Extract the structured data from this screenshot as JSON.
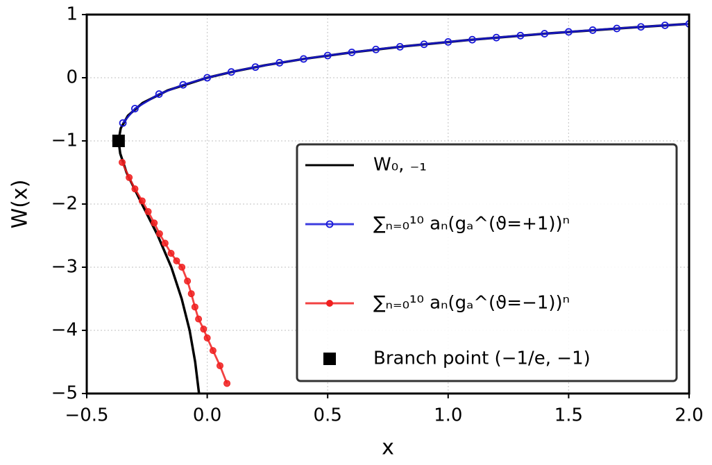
{
  "chart_data": {
    "type": "line",
    "xlabel": "x",
    "ylabel": "W(x)",
    "xlim": [
      -0.5,
      2.0
    ],
    "ylim": [
      -5,
      1
    ],
    "xticks": [
      {
        "value": -0.5,
        "label": "−0.5"
      },
      {
        "value": 0,
        "label": "0.0"
      },
      {
        "value": 0.5,
        "label": "0.5"
      },
      {
        "value": 1,
        "label": "1.0"
      },
      {
        "value": 1.5,
        "label": "1.5"
      },
      {
        "value": 2,
        "label": "2.0"
      }
    ],
    "yticks": [
      1,
      0,
      {
        "value": -1,
        "label": "−1"
      },
      {
        "value": -2,
        "label": "−2"
      },
      {
        "value": -3,
        "label": "−3"
      },
      {
        "value": -4,
        "label": "−4"
      },
      {
        "value": -5,
        "label": "−5"
      }
    ],
    "grid": true,
    "legend": "lower right",
    "series": [
      {
        "name": "W₀, ₋₁",
        "color": "#000000",
        "marker": "none",
        "linestyle": "solid",
        "x": [
          1.989,
          1.78,
          1.41,
          1.093,
          0.824,
          0.597,
          0.405,
          0.244,
          0.111,
          0,
          -0.164,
          -0.268,
          -0.329,
          -0.359,
          -0.368,
          -0.361,
          -0.335,
          -0.271,
          -0.205,
          -0.149,
          -0.106,
          -0.073,
          -0.05,
          -0.034
        ],
        "values": [
          0.85,
          0.8,
          0.7,
          0.6,
          0.5,
          0.4,
          0.3,
          0.2,
          0.1,
          0,
          -0.2,
          -0.4,
          -0.6,
          -0.8,
          -1,
          -1.2,
          -1.5,
          -2,
          -2.5,
          -3,
          -3.5,
          -4,
          -4.5,
          -5
        ]
      },
      {
        "name": "∑ₙ₌₀¹⁰ aₙ(gₐ^(ϑ=+1))ⁿ",
        "color": "#1a1ad9",
        "marker": "open-circle",
        "linestyle": "solid",
        "x": [
          -0.35,
          -0.3,
          -0.2,
          -0.1,
          0,
          0.1,
          0.2,
          0.3,
          0.4,
          0.5,
          0.6,
          0.7,
          0.8,
          0.9,
          1.0,
          1.1,
          1.2,
          1.3,
          1.4,
          1.5,
          1.6,
          1.7,
          1.8,
          1.9,
          2.0
        ],
        "values": [
          -0.717,
          -0.489,
          -0.259,
          -0.112,
          0,
          0.0913,
          0.1689,
          0.2368,
          0.2972,
          0.3517,
          0.4015,
          0.4475,
          0.49,
          0.5298,
          0.5671,
          0.6022,
          0.6355,
          0.667,
          0.697,
          0.7259,
          0.7534,
          0.7798,
          0.8052,
          0.8298,
          0.8526
        ]
      },
      {
        "name": "∑ₙ₌₀¹⁰ aₙ(gₐ^(ϑ=−1))ⁿ",
        "color": "#f02020",
        "marker": "circle",
        "linestyle": "solid",
        "x": [
          -0.353,
          -0.324,
          -0.3,
          -0.27,
          -0.245,
          -0.22,
          -0.198,
          -0.175,
          -0.15,
          -0.127,
          -0.105,
          -0.082,
          -0.066,
          -0.051,
          -0.036,
          -0.015,
          0.0,
          0.024,
          0.053,
          0.082
        ],
        "values": [
          -1.34,
          -1.58,
          -1.76,
          -1.95,
          -2.12,
          -2.3,
          -2.47,
          -2.62,
          -2.78,
          -2.9,
          -3.0,
          -3.22,
          -3.42,
          -3.63,
          -3.82,
          -3.98,
          -4.12,
          -4.32,
          -4.56,
          -4.84
        ]
      },
      {
        "name": "Branch point (−1/e, −1)",
        "color": "#000000",
        "marker": "square",
        "linestyle": "none",
        "x": [
          -0.3679
        ],
        "values": [
          -1
        ]
      }
    ]
  }
}
